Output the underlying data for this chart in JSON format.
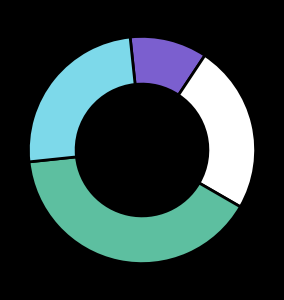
{
  "segments": [
    {
      "label": "purple",
      "value": 11,
      "color": "#7b5fcf"
    },
    {
      "label": "white",
      "value": 24,
      "color": "#ffffff"
    },
    {
      "label": "teal",
      "value": 40,
      "color": "#5dbfa0"
    },
    {
      "label": "cyan",
      "value": 25,
      "color": "#7dd9ea"
    }
  ],
  "background_color": "#000000",
  "donut_width": 0.42,
  "startangle": 96,
  "figsize": [
    2.84,
    3.0
  ],
  "dpi": 100
}
